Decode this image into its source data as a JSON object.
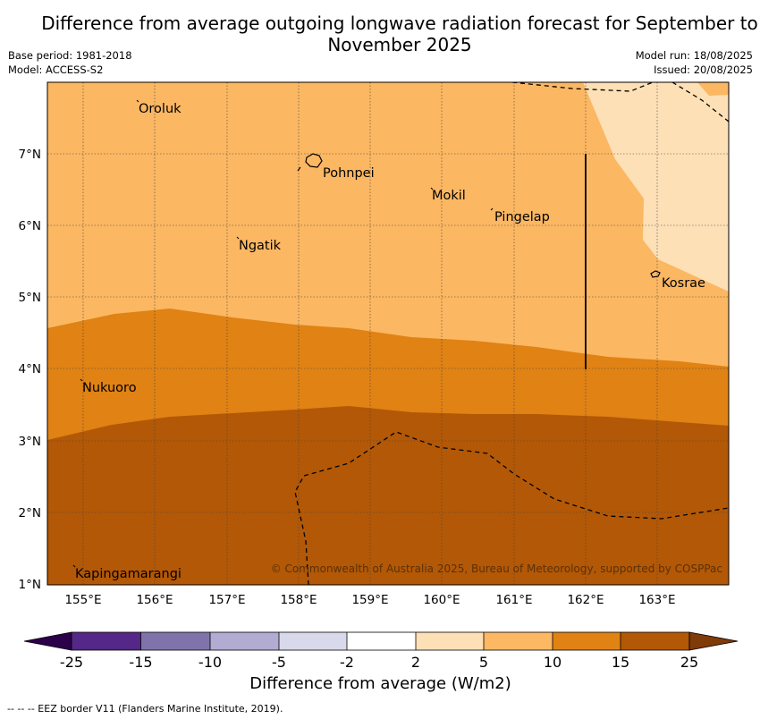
{
  "title": "Difference from average outgoing longwave radiation forecast for September to November 2025",
  "meta_left": {
    "base_period": "Base period: 1981-2018",
    "model": "Model: ACCESS-S2"
  },
  "meta_right": {
    "model_run": "Model run: 18/08/2025",
    "issued": "Issued: 20/08/2025"
  },
  "map": {
    "lon_range": [
      154.5,
      164.0
    ],
    "lat_range": [
      1.0,
      8.0
    ],
    "lon_ticks": [
      "155°E",
      "156°E",
      "157°E",
      "158°E",
      "159°E",
      "160°E",
      "161°E",
      "162°E",
      "163°E"
    ],
    "lat_ticks": [
      "7°N",
      "6°N",
      "5°N",
      "4°N",
      "3°N",
      "2°N",
      "1°N"
    ],
    "places": [
      {
        "name": "Oroluk"
      },
      {
        "name": "Pohnpei"
      },
      {
        "name": "Mokil"
      },
      {
        "name": "Pingelap"
      },
      {
        "name": "Ngatik"
      },
      {
        "name": "Kosrae"
      },
      {
        "name": "Nukuoro"
      },
      {
        "name": "Kapingamarangi"
      }
    ],
    "copyright": "© Commonwealth of Australia 2025, Bureau of Meteorology, supported by COSPPac",
    "colors": {
      "c2_5": "#fde0b6",
      "c5_10": "#fbb762",
      "c10_15": "#e08214",
      "c15_25": "#b35806"
    }
  },
  "colorbar": {
    "labels": [
      "-25",
      "-15",
      "-10",
      "-5",
      "-2",
      "2",
      "5",
      "10",
      "15",
      "25"
    ],
    "colors": [
      "#2d004b",
      "#542788",
      "#8073ac",
      "#b2abd2",
      "#d8daeb",
      "#ffffff",
      "#fee0b6",
      "#fdb863",
      "#e08214",
      "#b35806",
      "#7f3b08"
    ],
    "title": "Difference from average (W/m2)"
  },
  "eez_note": "--  --  -- EEZ border V11 (Flanders Marine Institute, 2019)."
}
